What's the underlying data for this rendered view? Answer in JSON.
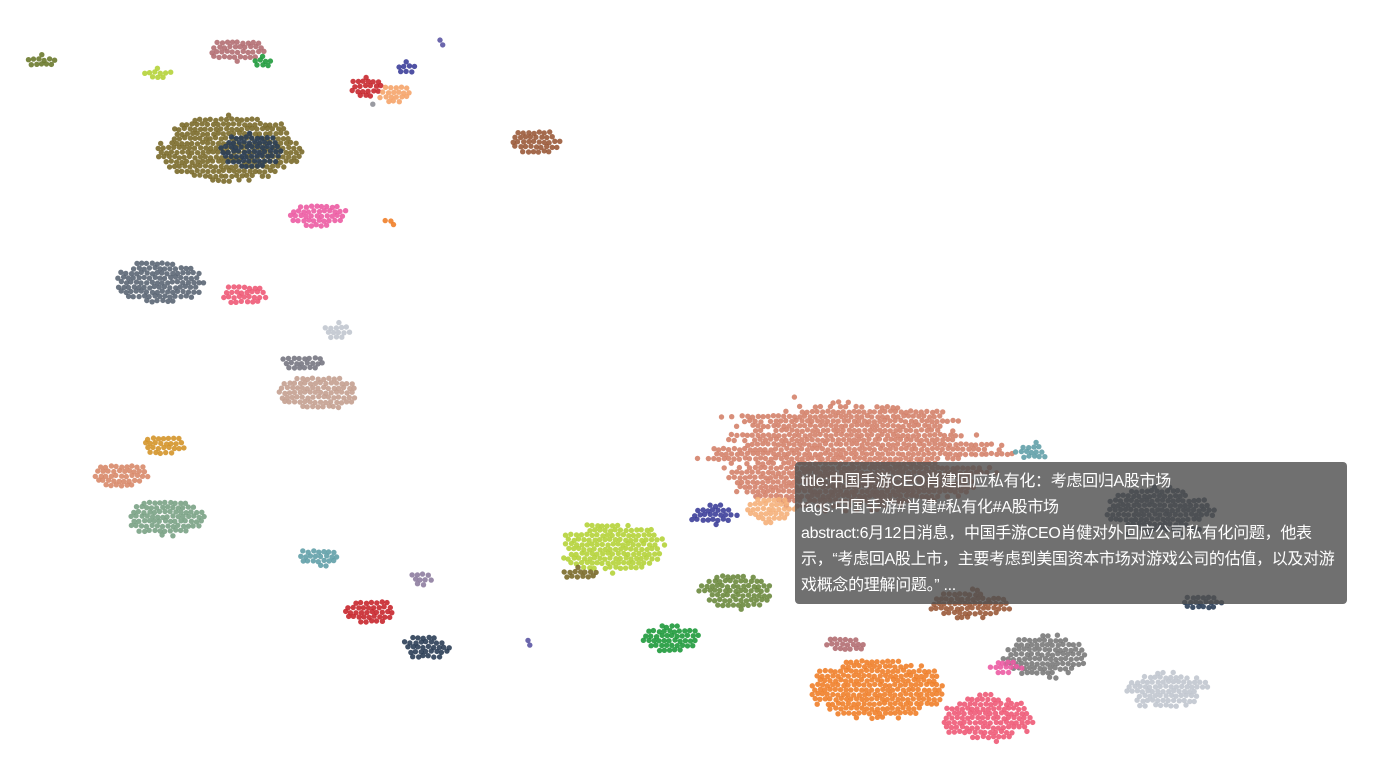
{
  "chart_data": {
    "type": "scatter",
    "title": "",
    "xlabel": "",
    "ylabel": "",
    "grid": false,
    "legend": "none",
    "clusters": [
      {
        "color": "#6b7a2e",
        "center": [
          42,
          61
        ],
        "extent": [
          16,
          6
        ],
        "points": 12
      },
      {
        "color": "#b5d33a",
        "center": [
          157,
          73
        ],
        "extent": [
          15,
          5
        ],
        "points": 10
      },
      {
        "color": "#b26e72",
        "center": [
          237,
          50
        ],
        "extent": [
          28,
          12
        ],
        "points": 40
      },
      {
        "color": "#1f9a3c",
        "center": [
          263,
          62
        ],
        "extent": [
          11,
          6
        ],
        "points": 10
      },
      {
        "color": "#3d3f9a",
        "center": [
          406,
          68
        ],
        "extent": [
          10,
          6
        ],
        "points": 8
      },
      {
        "color": "#5b55a3",
        "center": [
          440,
          42
        ],
        "extent": [
          3,
          6
        ],
        "points": 4
      },
      {
        "color": "#c8272e",
        "center": [
          367,
          87
        ],
        "extent": [
          17,
          10
        ],
        "points": 26
      },
      {
        "color": "#f5a46a",
        "center": [
          396,
          93
        ],
        "extent": [
          18,
          10
        ],
        "points": 20
      },
      {
        "color": "#8e8f97",
        "center": [
          373,
          102
        ],
        "extent": [
          3,
          3
        ],
        "points": 2
      },
      {
        "color": "#7a6a2a",
        "center": [
          230,
          149
        ],
        "extent": [
          74,
          34
        ],
        "points": 300
      },
      {
        "color": "#2b3e56",
        "center": [
          251,
          151
        ],
        "extent": [
          33,
          18
        ],
        "points": 70
      },
      {
        "color": "#9a5a3a",
        "center": [
          535,
          142
        ],
        "extent": [
          30,
          14
        ],
        "points": 40
      },
      {
        "color": "#ec5ca3",
        "center": [
          318,
          215
        ],
        "extent": [
          30,
          13
        ],
        "points": 45
      },
      {
        "color": "#f07f2a",
        "center": [
          390,
          221
        ],
        "extent": [
          7,
          5
        ],
        "points": 3
      },
      {
        "color": "#5b6674",
        "center": [
          159,
          281
        ],
        "extent": [
          46,
          22
        ],
        "points": 120
      },
      {
        "color": "#ee5a77",
        "center": [
          245,
          294
        ],
        "extent": [
          24,
          11
        ],
        "points": 30
      },
      {
        "color": "#c1c6cf",
        "center": [
          337,
          331
        ],
        "extent": [
          14,
          8
        ],
        "points": 14
      },
      {
        "color": "#777782",
        "center": [
          302,
          363
        ],
        "extent": [
          21,
          9
        ],
        "points": 22
      },
      {
        "color": "#c4a090",
        "center": [
          318,
          392
        ],
        "extent": [
          44,
          18
        ],
        "points": 90
      },
      {
        "color": "#d4952a",
        "center": [
          163,
          445
        ],
        "extent": [
          23,
          11
        ],
        "points": 28
      },
      {
        "color": "#d88a6a",
        "center": [
          121,
          475
        ],
        "extent": [
          28,
          13
        ],
        "points": 45
      },
      {
        "color": "#7aa285",
        "center": [
          166,
          517
        ],
        "extent": [
          40,
          19
        ],
        "points": 90
      },
      {
        "color": "#62a0a9",
        "center": [
          319,
          557
        ],
        "extent": [
          24,
          10
        ],
        "points": 24
      },
      {
        "color": "#8e7da0",
        "center": [
          423,
          578
        ],
        "extent": [
          13,
          8
        ],
        "points": 10
      },
      {
        "color": "#c8272e",
        "center": [
          370,
          611
        ],
        "extent": [
          27,
          13
        ],
        "points": 40
      },
      {
        "color": "#2b3e56",
        "center": [
          426,
          646
        ],
        "extent": [
          26,
          13
        ],
        "points": 36
      },
      {
        "color": "#5b55a3",
        "center": [
          528,
          641
        ],
        "extent": [
          3,
          6
        ],
        "points": 4
      },
      {
        "color": "#d4826a",
        "center": [
          853,
          445
        ],
        "extent": [
          168,
          66
        ],
        "points": 900
      },
      {
        "color": "#62a0a9",
        "center": [
          1030,
          452
        ],
        "extent": [
          22,
          14
        ],
        "points": 16
      },
      {
        "color": "#f5b07a",
        "center": [
          770,
          513
        ],
        "extent": [
          30,
          18
        ],
        "points": 40
      },
      {
        "color": "#3d3f9a",
        "center": [
          714,
          514
        ],
        "extent": [
          27,
          13
        ],
        "points": 28
      },
      {
        "color": "#b5d33a",
        "center": [
          613,
          548
        ],
        "extent": [
          60,
          27
        ],
        "points": 160
      },
      {
        "color": "#7a6a2a",
        "center": [
          580,
          573
        ],
        "extent": [
          18,
          6
        ],
        "points": 14
      },
      {
        "color": "#6b8a3e",
        "center": [
          737,
          592
        ],
        "extent": [
          43,
          20
        ],
        "points": 80
      },
      {
        "color": "#2b3e56",
        "center": [
          1160,
          510
        ],
        "extent": [
          60,
          28
        ],
        "points": 150
      },
      {
        "color": "#2b3e56",
        "center": [
          1202,
          602
        ],
        "extent": [
          22,
          9
        ],
        "points": 20
      },
      {
        "color": "#9a5a3a",
        "center": [
          970,
          605
        ],
        "extent": [
          52,
          20
        ],
        "points": 70
      },
      {
        "color": "#1f9a3c",
        "center": [
          670,
          638
        ],
        "extent": [
          37,
          16
        ],
        "points": 50
      },
      {
        "color": "#b26e72",
        "center": [
          846,
          644
        ],
        "extent": [
          24,
          9
        ],
        "points": 20
      },
      {
        "color": "#7a7a7a",
        "center": [
          1045,
          657
        ],
        "extent": [
          52,
          26
        ],
        "points": 110
      },
      {
        "color": "#ec5ca3",
        "center": [
          1005,
          667
        ],
        "extent": [
          20,
          9
        ],
        "points": 14
      },
      {
        "color": "#f07f2a",
        "center": [
          877,
          689
        ],
        "extent": [
          70,
          32
        ],
        "points": 260
      },
      {
        "color": "#ee5a77",
        "center": [
          988,
          717
        ],
        "extent": [
          52,
          27
        ],
        "points": 130
      },
      {
        "color": "#c1c6cf",
        "center": [
          1167,
          690
        ],
        "extent": [
          48,
          22
        ],
        "points": 90
      }
    ]
  },
  "tooltip": {
    "title_line": "title:中国手游CEO肖建回应私有化：考虑回归A股市场",
    "tags_line": "tags:中国手游#肖建#私有化#A股市场",
    "abstract_line": "abstract:6月12日消息，中国手游CEO肖健对外回应公司私有化问题，他表示，“考虑回A股上市，主要考虑到美国资本市场对游戏公司的估值，以及对游戏概念的理解问题。” ..."
  }
}
